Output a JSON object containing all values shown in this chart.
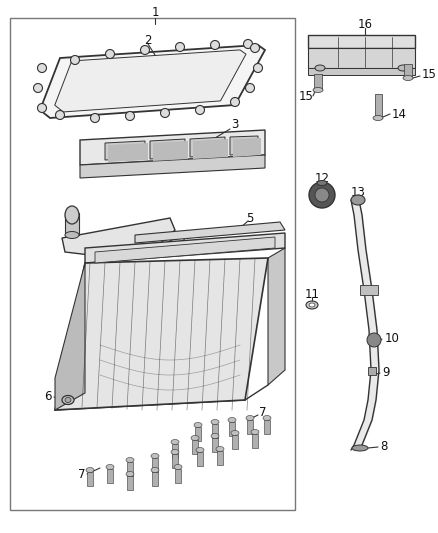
{
  "bg_color": "#ffffff",
  "border_color": "#555555",
  "line_color": "#333333",
  "text_color": "#111111",
  "fig_width": 4.38,
  "fig_height": 5.33,
  "dpi": 100,
  "font_size": 8.5
}
